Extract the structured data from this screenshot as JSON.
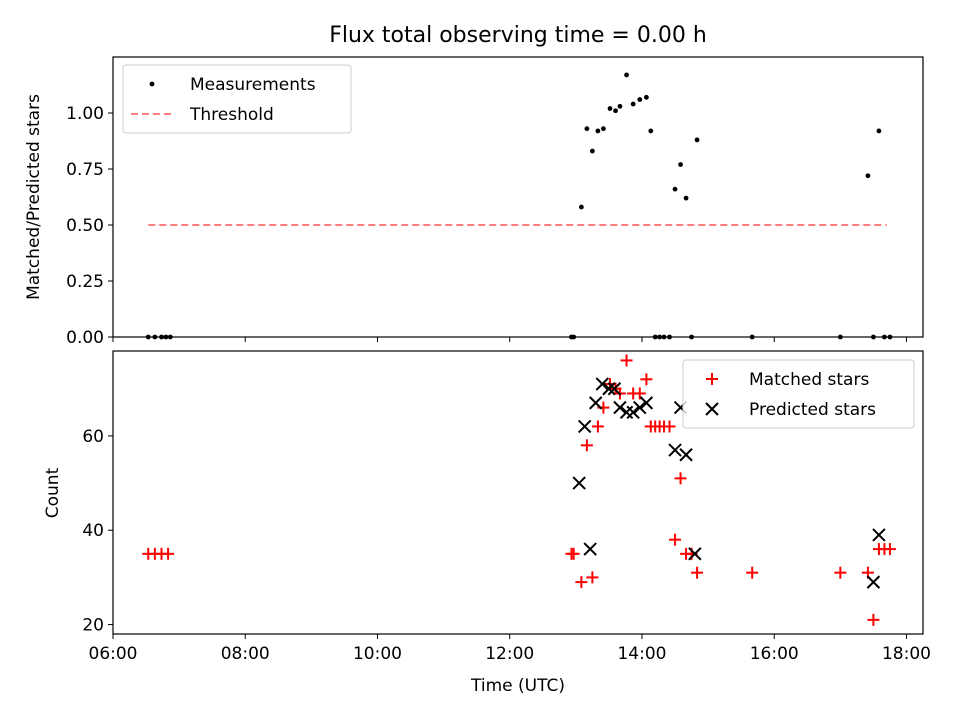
{
  "figure": {
    "title": "Flux total observing time = 0.00 h"
  },
  "chart_data": [
    {
      "type": "scatter",
      "panel": "top",
      "ylabel": "Matched/Predicted stars",
      "xlim": [
        "06:00",
        "18:15"
      ],
      "ylim": [
        0,
        1.25
      ],
      "yticks": [
        0.0,
        0.25,
        0.5,
        0.75,
        1.0
      ],
      "ytick_labels": [
        "0.00",
        "0.25",
        "0.50",
        "0.75",
        "1.00"
      ],
      "legend": {
        "placement": "top-left",
        "entries": [
          "Measurements",
          "Threshold"
        ]
      },
      "series": [
        {
          "name": "Measurements",
          "kind": "points",
          "color": "#000000",
          "x": [
            "06:32",
            "06:38",
            "06:44",
            "06:48",
            "06:52",
            "12:56",
            "12:58",
            "13:05",
            "13:10",
            "13:15",
            "13:20",
            "13:25",
            "13:31",
            "13:36",
            "13:40",
            "13:46",
            "13:52",
            "13:58",
            "14:04",
            "14:08",
            "14:12",
            "14:16",
            "14:20",
            "14:25",
            "14:30",
            "14:35",
            "14:40",
            "14:45",
            "14:50",
            "15:40",
            "17:00",
            "17:25",
            "17:30",
            "17:35",
            "17:40",
            "17:45"
          ],
          "y": [
            0,
            0,
            0,
            0,
            0,
            0,
            0,
            0.58,
            0.93,
            0.83,
            0.92,
            0.93,
            1.02,
            1.01,
            1.03,
            1.17,
            1.04,
            1.06,
            1.07,
            0.92,
            0,
            0,
            0,
            0,
            0.66,
            0.77,
            0.62,
            0,
            0.88,
            0,
            0,
            0.72,
            0,
            0.92,
            0,
            0
          ]
        },
        {
          "name": "Threshold",
          "kind": "dashed-line",
          "color": "#ff7f7f",
          "x": [
            "06:32",
            "17:42"
          ],
          "y": [
            0.5,
            0.5
          ]
        }
      ]
    },
    {
      "type": "scatter",
      "panel": "bottom",
      "xlabel": "Time (UTC)",
      "ylabel": "Count",
      "xlim": [
        "06:00",
        "18:15"
      ],
      "ylim": [
        18,
        78
      ],
      "yticks": [
        20,
        40,
        60
      ],
      "ytick_labels": [
        "20",
        "40",
        "60"
      ],
      "xtick_labels": [
        "06:00",
        "08:00",
        "10:00",
        "12:00",
        "14:00",
        "16:00",
        "18:00"
      ],
      "legend": {
        "placement": "top-right",
        "entries": [
          "Matched stars",
          "Predicted stars"
        ]
      },
      "series": [
        {
          "name": "Matched stars",
          "marker": "plus",
          "color": "#ff0000",
          "x": [
            "06:32",
            "06:38",
            "06:44",
            "06:50",
            "12:56",
            "12:58",
            "13:05",
            "13:10",
            "13:15",
            "13:20",
            "13:25",
            "13:31",
            "13:36",
            "13:40",
            "13:46",
            "13:52",
            "13:58",
            "14:04",
            "14:08",
            "14:12",
            "14:16",
            "14:20",
            "14:25",
            "14:30",
            "14:35",
            "14:40",
            "14:45",
            "14:50",
            "15:40",
            "17:00",
            "17:25",
            "17:30",
            "17:35",
            "17:40",
            "17:45"
          ],
          "y": [
            35,
            35,
            35,
            35,
            35,
            35,
            29,
            58,
            30,
            62,
            66,
            71,
            70,
            69,
            76,
            69,
            69,
            72,
            62,
            62,
            62,
            62,
            62,
            38,
            51,
            35,
            35,
            31,
            31,
            31,
            31,
            21,
            36,
            36,
            36
          ]
        },
        {
          "name": "Predicted stars",
          "marker": "x",
          "color": "#000000",
          "x": [
            "13:03",
            "13:08",
            "13:13",
            "13:18",
            "13:24",
            "13:30",
            "13:35",
            "13:40",
            "13:46",
            "13:52",
            "13:58",
            "14:04",
            "14:30",
            "14:35",
            "14:40",
            "14:48",
            "17:30",
            "17:35"
          ],
          "y": [
            50,
            62,
            36,
            67,
            71,
            70,
            70,
            66,
            65,
            65,
            66,
            67,
            57,
            66,
            56,
            35,
            29,
            39
          ]
        }
      ]
    }
  ]
}
